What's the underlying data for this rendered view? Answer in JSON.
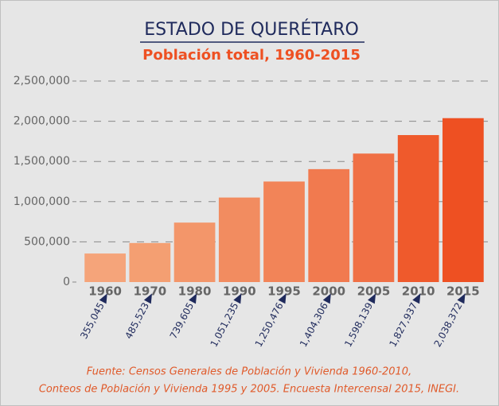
{
  "chart_data": {
    "type": "bar",
    "title": "ESTADO DE QUERÉTARO",
    "subtitle": "Población total, 1960-2015",
    "categories": [
      "1960",
      "1970",
      "1980",
      "1990",
      "1995",
      "2000",
      "2005",
      "2010",
      "2015"
    ],
    "values": [
      355045,
      485523,
      739605,
      1051235,
      1250476,
      1404306,
      1598139,
      1827937,
      2038372
    ],
    "value_labels": [
      "355,045",
      "485,523",
      "739,605",
      "1,051,235",
      "1,250,476",
      "1,404,306",
      "1,598,139",
      "1,827,937",
      "2,038,372"
    ],
    "colors": [
      "#f5a47a",
      "#f49f72",
      "#f3966a",
      "#f28c60",
      "#f28458",
      "#f17a4f",
      "#f07045",
      "#ef5a2c",
      "#ee5022"
    ],
    "ylim": [
      0,
      2500000
    ],
    "yticks": [
      0,
      {
        "value": 500000,
        "label": "500,000"
      },
      {
        "value": 1000000,
        "label": "1,000,000"
      },
      {
        "value": 1500000,
        "label": "1,500,000"
      },
      {
        "value": 2000000,
        "label": "2,000,000"
      },
      {
        "value": 2500000,
        "label": "2,500,000"
      }
    ],
    "grid": true,
    "source": [
      "Fuente: Censos Generales de Población y Vivienda 1960-2010,",
      "Conteos de Población y Vivienda 1995 y 2005. Encuesta Intercensal 2015, INEGI."
    ]
  }
}
